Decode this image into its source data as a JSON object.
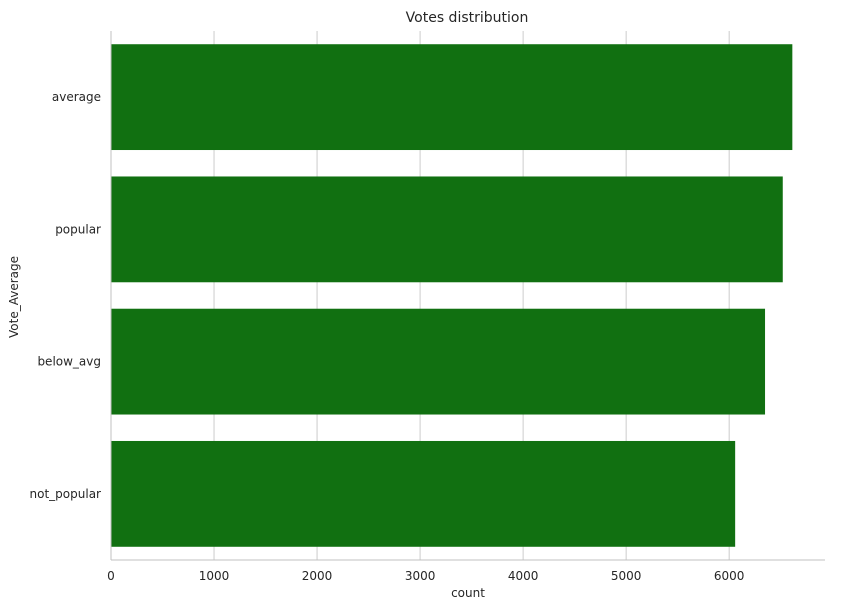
{
  "chart_data": {
    "type": "bar",
    "orientation": "horizontal",
    "title": "Votes distribution",
    "xlabel": "count",
    "ylabel": "Vote_Average",
    "categories": [
      "average",
      "popular",
      "below_avg",
      "not_popular"
    ],
    "values": [
      6613,
      6520,
      6348,
      6058
    ],
    "xlim": [
      0,
      6930
    ],
    "xticks": [
      0,
      1000,
      2000,
      3000,
      4000,
      5000,
      6000
    ],
    "xtick_labels": [
      "0",
      "1000",
      "2000",
      "3000",
      "4000",
      "5000",
      "6000"
    ],
    "grid": "vertical",
    "bar_color": "#117011",
    "grid_color": "#cccccc",
    "spine_color": "#c0c0c0"
  }
}
